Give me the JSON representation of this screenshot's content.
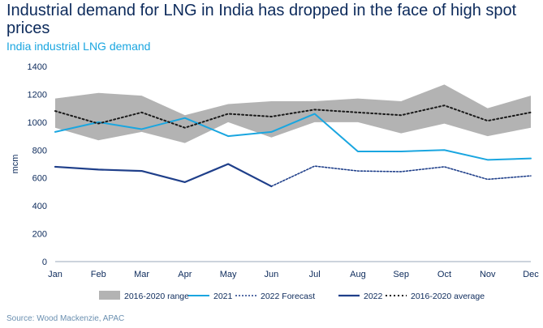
{
  "header": {
    "title": "Industrial demand for LNG in India has dropped in the face of high spot prices",
    "subtitle": "India industrial LNG demand"
  },
  "footer": {
    "source": "Source: Wood Mackenzie, APAC"
  },
  "colors": {
    "range": "#b3b3b3",
    "y2021": "#1aa6e0",
    "forecast2022": "#1f3f8a",
    "y2022": "#1f3f8a",
    "average": "#1a1a1a",
    "text": "#0c2a5b"
  },
  "chart_data": {
    "type": "line",
    "title": "India industrial LNG demand",
    "ylabel": "mcm",
    "xlabel": "",
    "ylim": [
      0,
      1400
    ],
    "yticks": [
      0,
      200,
      400,
      600,
      800,
      1000,
      1200,
      1400
    ],
    "categories": [
      "Jan",
      "Feb",
      "Mar",
      "Apr",
      "May",
      "Jun",
      "Jul",
      "Aug",
      "Sep",
      "Oct",
      "Nov",
      "Dec"
    ],
    "grid": "none",
    "legend_position": "bottom",
    "range": {
      "name": "2016-2020 range",
      "low": [
        960,
        870,
        930,
        850,
        1000,
        890,
        1000,
        1000,
        920,
        990,
        900,
        960
      ],
      "high": [
        1170,
        1210,
        1190,
        1050,
        1130,
        1150,
        1150,
        1170,
        1150,
        1270,
        1100,
        1190
      ]
    },
    "series": [
      {
        "name": "2021",
        "style": "solid-light",
        "values": [
          930,
          1000,
          950,
          1030,
          900,
          930,
          1060,
          790,
          790,
          800,
          730,
          740
        ]
      },
      {
        "name": "2022 Forecast",
        "style": "dotted-dark",
        "values": [
          null,
          null,
          null,
          null,
          null,
          540,
          685,
          650,
          645,
          680,
          590,
          615
        ]
      },
      {
        "name": "2022",
        "style": "solid-dark",
        "values": [
          680,
          660,
          650,
          570,
          700,
          540,
          null,
          null,
          null,
          null,
          null,
          null
        ]
      },
      {
        "name": "2016-2020 average",
        "style": "dotted-black",
        "values": [
          1080,
          990,
          1070,
          960,
          1060,
          1040,
          1090,
          1070,
          1050,
          1120,
          1010,
          1070
        ]
      }
    ]
  }
}
